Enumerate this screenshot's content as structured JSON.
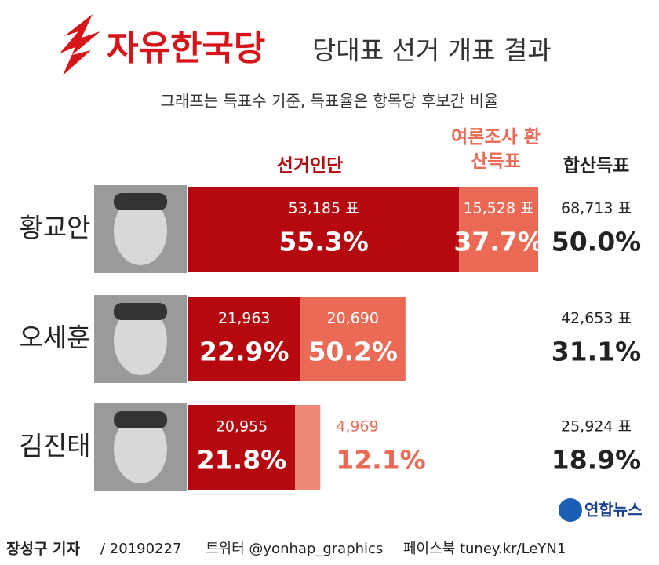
{
  "chart_data": {
    "type": "bar",
    "stacked": true,
    "orientation": "horizontal",
    "party": "자유한국당",
    "title": "당대표 선거 개표 결과",
    "subtitle": "그래프는 득표수 기준, 득표율은 항목당 후보간 비율",
    "categories": [
      "황교안",
      "오세훈",
      "김진태"
    ],
    "series": [
      {
        "name": "선거인단",
        "color": "#b5080f",
        "values": [
          53185,
          21963,
          20955
        ],
        "value_labels": [
          "53,185 표",
          "21,963",
          "20,955"
        ],
        "shares": [
          55.3,
          22.9,
          21.8
        ],
        "share_labels": [
          "55.3%",
          "22.9%",
          "21.8%"
        ]
      },
      {
        "name": "여론조사 환산득표",
        "color": "#ea6a55",
        "values": [
          15528,
          20690,
          4969
        ],
        "value_labels": [
          "15,528 표",
          "20,690",
          "4,969"
        ],
        "shares": [
          37.7,
          50.2,
          12.1
        ],
        "share_labels": [
          "37.7%",
          "50.2%",
          "12.1%"
        ]
      }
    ],
    "totals": {
      "name": "합산득표",
      "values": [
        68713,
        42653,
        25924
      ],
      "value_labels": [
        "68,713 표",
        "42,653 표",
        "25,924 표"
      ],
      "shares": [
        50.0,
        31.1,
        18.9
      ],
      "share_labels": [
        "50.0%",
        "31.1%",
        "18.9%"
      ]
    },
    "footer": {
      "byline": "장성구 기자",
      "date": "/ 20190227",
      "twitter": "트위터 @yonhap_graphics",
      "facebook": "페이스북 tuney.kr/LeYN1",
      "source": "연합뉴스"
    }
  }
}
